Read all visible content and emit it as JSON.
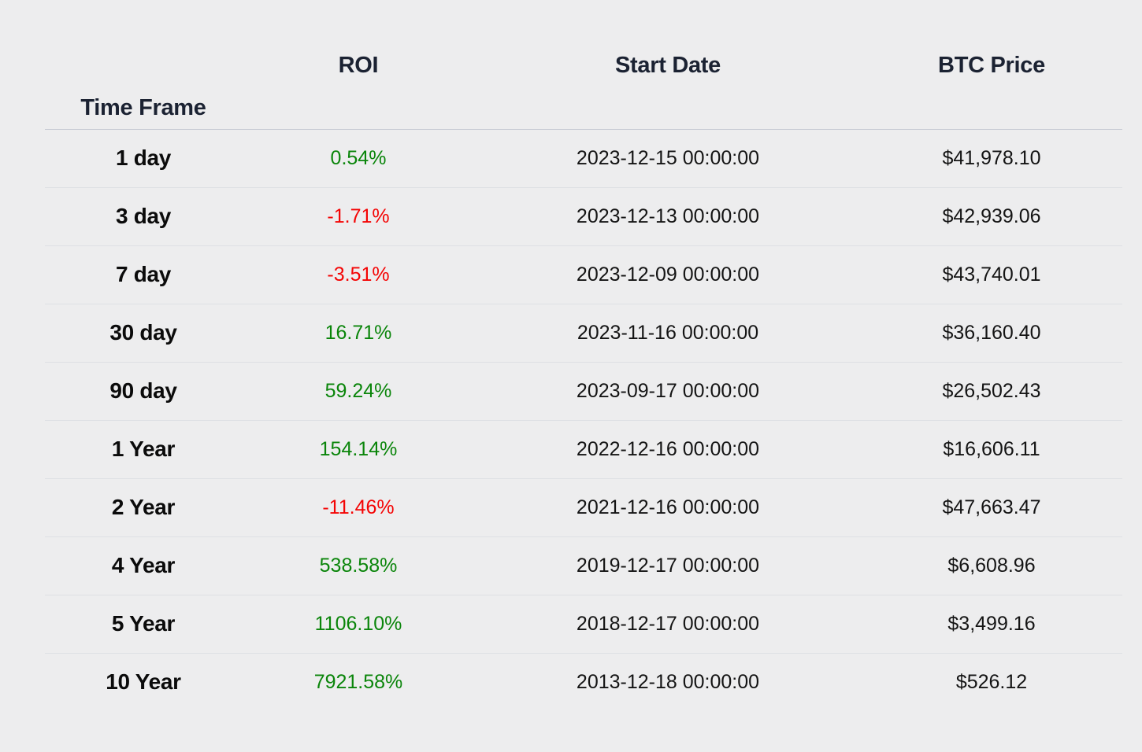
{
  "colors": {
    "background": "#EDEDEE",
    "header_text": "#1B2232",
    "index_text": "#0B0B0B",
    "cell_text": "#141414",
    "positive": "#0A850A",
    "negative": "#F40404",
    "header_border": "#C7CBD3",
    "row_border": "#DEE0E4"
  },
  "table": {
    "index_label": "Time Frame",
    "columns": [
      "ROI",
      "Start Date",
      "BTC Price"
    ],
    "headers": {
      "roi": "ROI",
      "start_date": "Start Date",
      "btc_price": "BTC Price"
    },
    "rows": [
      {
        "time_frame": "1 day",
        "roi": "0.54%",
        "roi_dir": "positive",
        "start_date": "2023-12-15 00:00:00",
        "btc_price": "$41,978.10"
      },
      {
        "time_frame": "3 day",
        "roi": "-1.71%",
        "roi_dir": "negative",
        "start_date": "2023-12-13 00:00:00",
        "btc_price": "$42,939.06"
      },
      {
        "time_frame": "7 day",
        "roi": "-3.51%",
        "roi_dir": "negative",
        "start_date": "2023-12-09 00:00:00",
        "btc_price": "$43,740.01"
      },
      {
        "time_frame": "30 day",
        "roi": "16.71%",
        "roi_dir": "positive",
        "start_date": "2023-11-16 00:00:00",
        "btc_price": "$36,160.40"
      },
      {
        "time_frame": "90 day",
        "roi": "59.24%",
        "roi_dir": "positive",
        "start_date": "2023-09-17 00:00:00",
        "btc_price": "$26,502.43"
      },
      {
        "time_frame": "1 Year",
        "roi": "154.14%",
        "roi_dir": "positive",
        "start_date": "2022-12-16 00:00:00",
        "btc_price": "$16,606.11"
      },
      {
        "time_frame": "2 Year",
        "roi": "-11.46%",
        "roi_dir": "negative",
        "start_date": "2021-12-16 00:00:00",
        "btc_price": "$47,663.47"
      },
      {
        "time_frame": "4 Year",
        "roi": "538.58%",
        "roi_dir": "positive",
        "start_date": "2019-12-17 00:00:00",
        "btc_price": "$6,608.96"
      },
      {
        "time_frame": "5 Year",
        "roi": "1106.10%",
        "roi_dir": "positive",
        "start_date": "2018-12-17 00:00:00",
        "btc_price": "$3,499.16"
      },
      {
        "time_frame": "10 Year",
        "roi": "7921.58%",
        "roi_dir": "positive",
        "start_date": "2013-12-18 00:00:00",
        "btc_price": "$526.12"
      }
    ]
  }
}
